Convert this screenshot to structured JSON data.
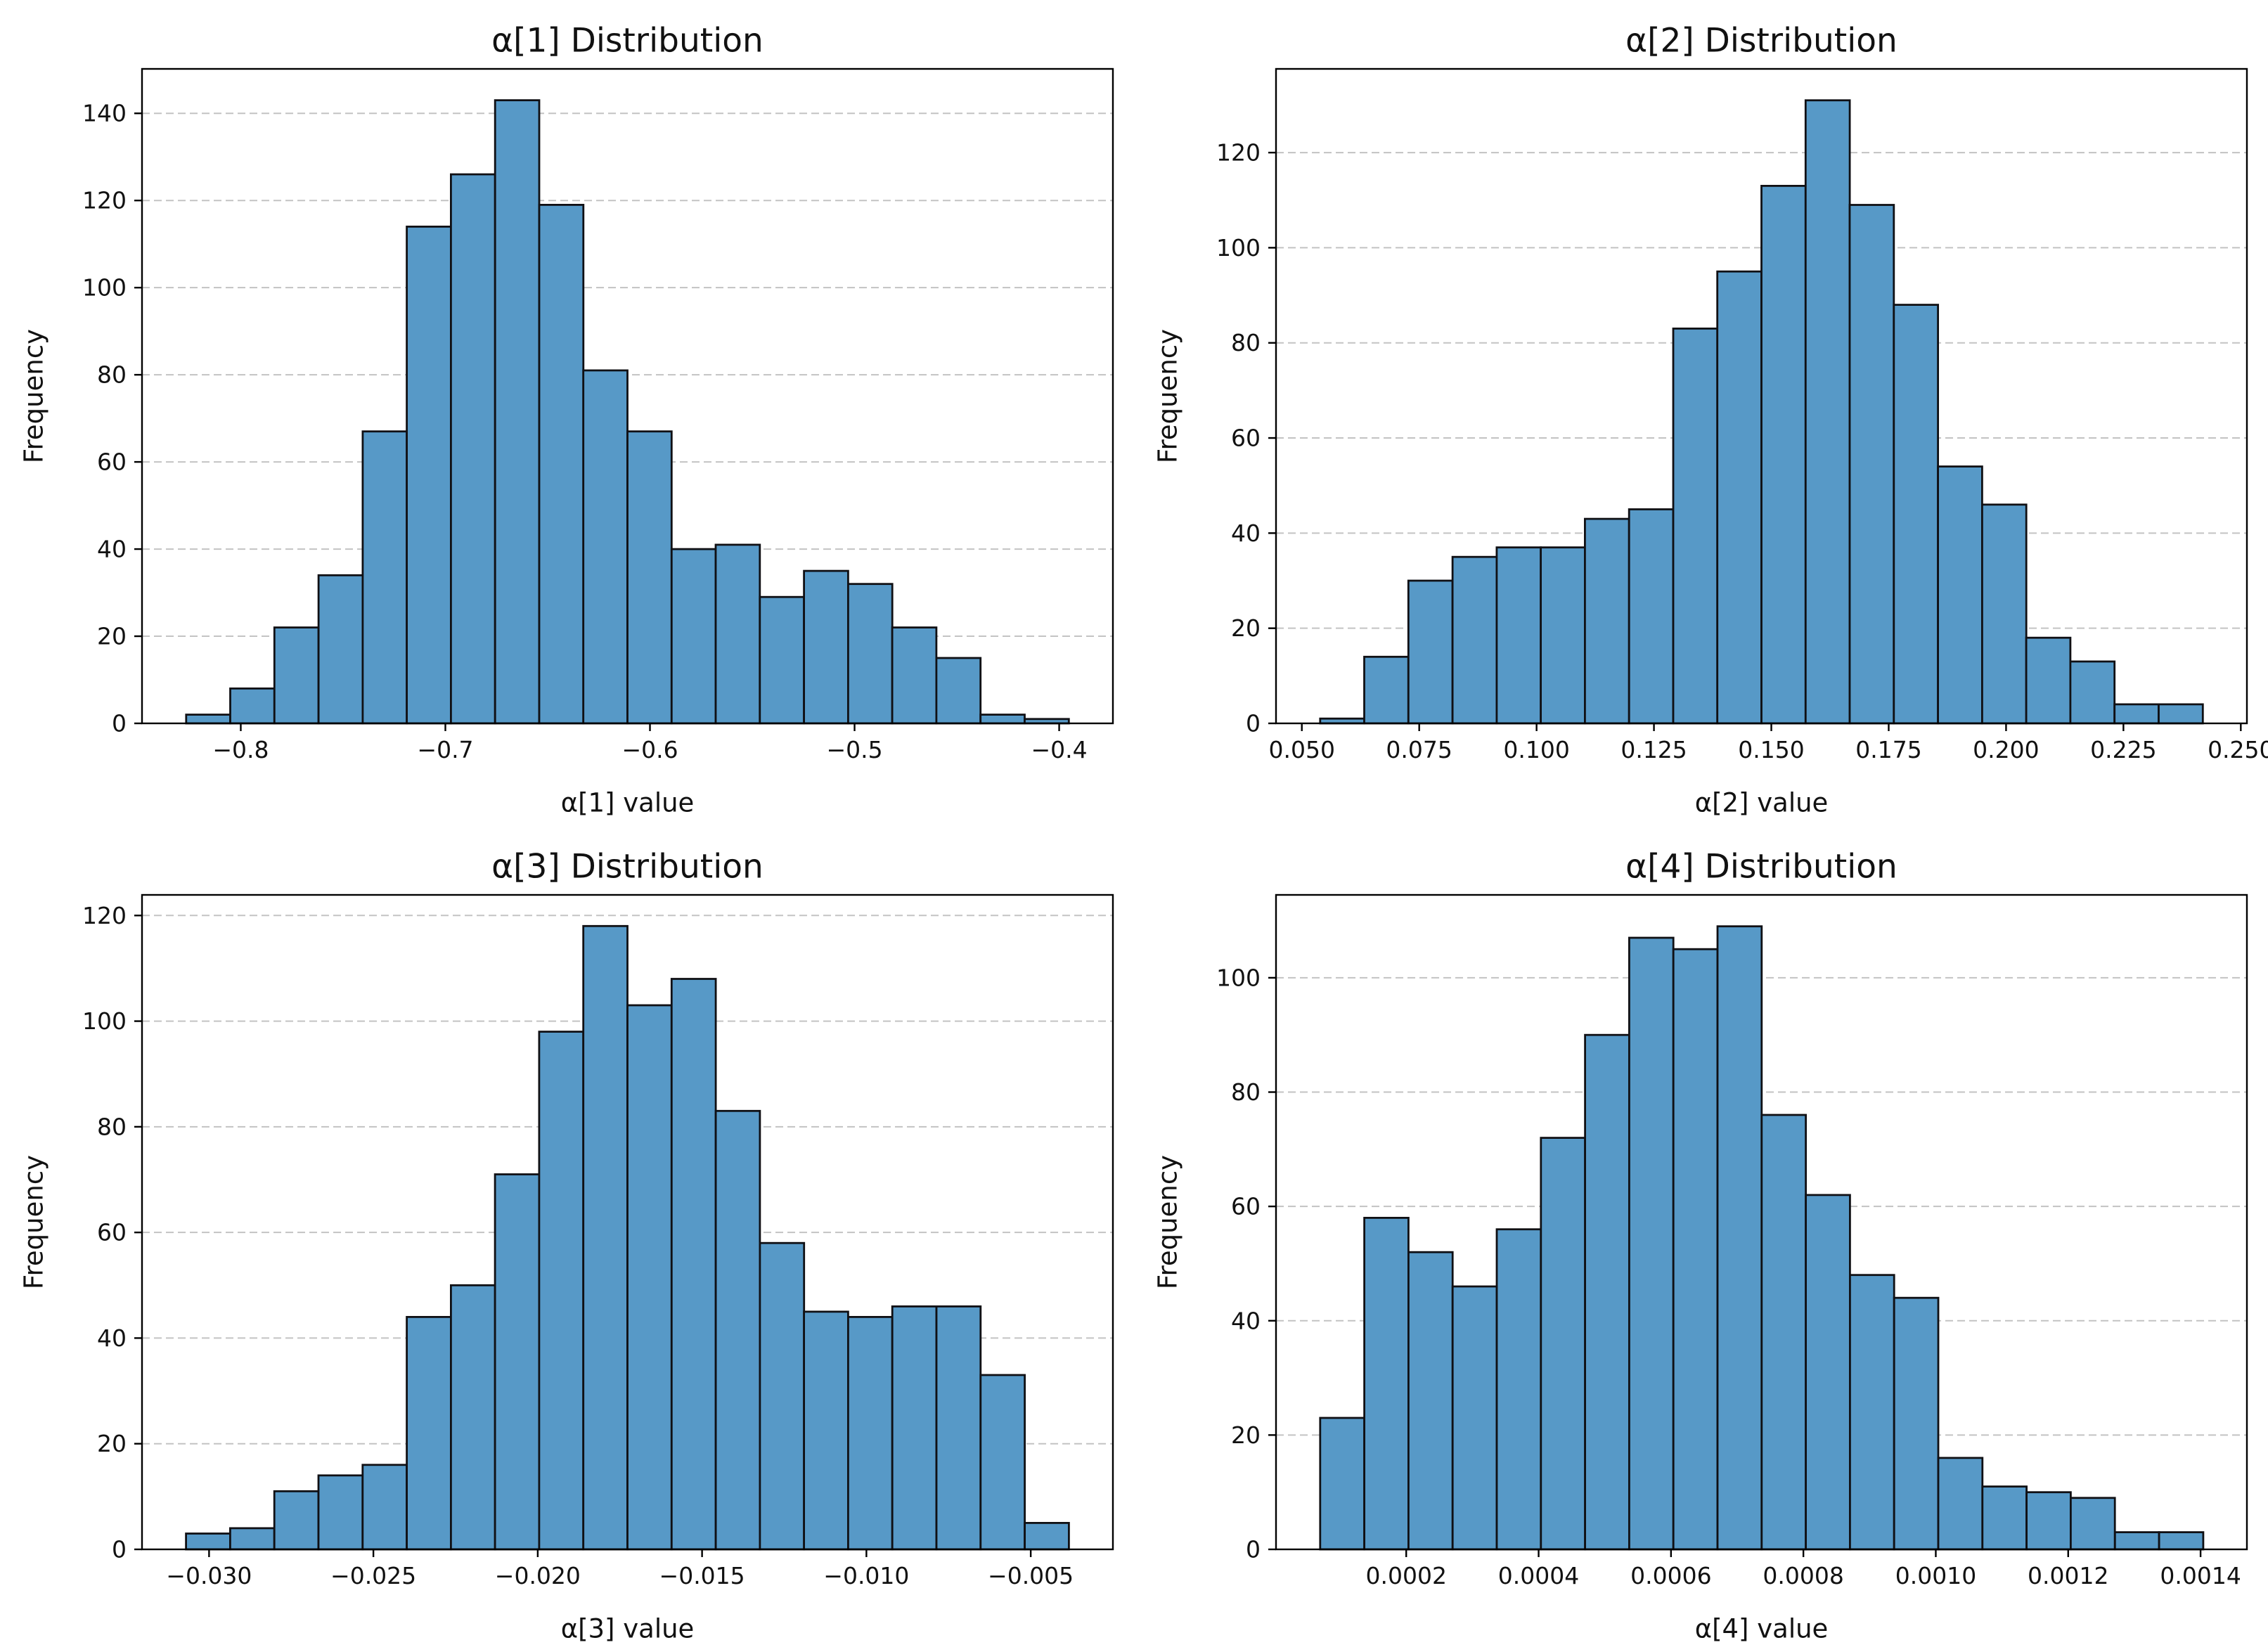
{
  "figure": {
    "background": "#ffffff",
    "bar_fill": "#5799C7",
    "bar_edge": "#101014",
    "grid_color": "#c3c3c3",
    "spine_color": "#000000",
    "text_color": "#111111"
  },
  "chart_data": [
    {
      "key": "alpha-1",
      "type": "bar",
      "subtype": "histogram",
      "title": "α[1] Distribution",
      "xlabel": "α[1] value",
      "ylabel": "Frequency",
      "bin_start": -0.8267,
      "bin_width": 0.02157,
      "values": [
        2,
        8,
        22,
        34,
        67,
        114,
        126,
        143,
        119,
        81,
        67,
        40,
        41,
        29,
        35,
        32,
        22,
        15,
        2,
        1
      ],
      "xtick_values": [
        -0.8,
        -0.7,
        -0.6,
        -0.5,
        -0.4
      ],
      "xtick_labels": [
        "−0.8",
        "−0.7",
        "−0.6",
        "−0.5",
        "−0.4"
      ],
      "yticks": [
        0,
        20,
        40,
        60,
        80,
        100,
        120,
        140
      ],
      "xlim": [
        -0.84827,
        -0.37373
      ],
      "ylim": [
        0,
        150.2
      ],
      "grid": "y-dashed",
      "legend": "none"
    },
    {
      "key": "alpha-2",
      "type": "bar",
      "subtype": "histogram",
      "title": "α[2] Distribution",
      "xlabel": "α[2] value",
      "ylabel": "Frequency",
      "bin_start": 0.0539,
      "bin_width": 0.0094,
      "values": [
        1,
        14,
        30,
        35,
        37,
        37,
        43,
        45,
        83,
        95,
        113,
        131,
        109,
        88,
        54,
        46,
        18,
        13,
        4,
        4
      ],
      "xtick_values": [
        0.05,
        0.075,
        0.1,
        0.125,
        0.15,
        0.175,
        0.2,
        0.225,
        0.25
      ],
      "xtick_labels": [
        "0.050",
        "0.075",
        "0.100",
        "0.125",
        "0.150",
        "0.175",
        "0.200",
        "0.225",
        "0.250"
      ],
      "yticks": [
        0,
        20,
        40,
        60,
        80,
        100,
        120
      ],
      "xlim": [
        0.0445,
        0.2513
      ],
      "ylim": [
        0,
        137.6
      ],
      "grid": "y-dashed",
      "legend": "none"
    },
    {
      "key": "alpha-3",
      "type": "bar",
      "subtype": "histogram",
      "title": "α[3] Distribution",
      "xlabel": "α[3] value",
      "ylabel": "Frequency",
      "bin_start": -0.0307,
      "bin_width": 0.001343,
      "values": [
        3,
        4,
        11,
        14,
        16,
        44,
        50,
        71,
        98,
        118,
        103,
        108,
        83,
        58,
        45,
        44,
        46,
        46,
        33,
        5
      ],
      "xtick_values": [
        -0.03,
        -0.025,
        -0.02,
        -0.015,
        -0.01,
        -0.005
      ],
      "xtick_labels": [
        "−0.030",
        "−0.025",
        "−0.020",
        "−0.015",
        "−0.010",
        "−0.005"
      ],
      "yticks": [
        0,
        20,
        40,
        60,
        80,
        100,
        120
      ],
      "xlim": [
        -0.03204,
        -0.0025
      ],
      "ylim": [
        0,
        123.9
      ],
      "grid": "y-dashed",
      "legend": "none"
    },
    {
      "key": "alpha-4",
      "type": "bar",
      "subtype": "histogram",
      "title": "α[4] Distribution",
      "xlabel": "α[4] value",
      "ylabel": "Frequency",
      "bin_start": 7e-05,
      "bin_width": 6.67e-05,
      "values": [
        23,
        58,
        52,
        46,
        56,
        72,
        90,
        107,
        105,
        109,
        76,
        62,
        48,
        44,
        16,
        11,
        10,
        9,
        3,
        3
      ],
      "xtick_values": [
        0.0002,
        0.0004,
        0.0006,
        0.0008,
        0.001,
        0.0012,
        0.0014
      ],
      "xtick_labels": [
        "0.0002",
        "0.0004",
        "0.0006",
        "0.0008",
        "0.0010",
        "0.0012",
        "0.0014"
      ],
      "yticks": [
        0,
        20,
        40,
        60,
        80,
        100
      ],
      "xlim": [
        3.3e-06,
        0.00147
      ],
      "ylim": [
        0,
        114.5
      ],
      "grid": "y-dashed",
      "legend": "none"
    }
  ]
}
